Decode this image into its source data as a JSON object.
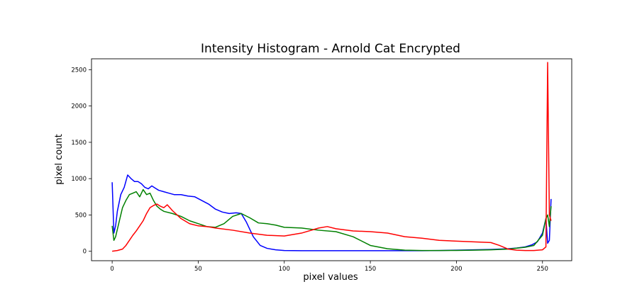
{
  "chart_data": {
    "type": "line",
    "title": "Intensity Histogram - Arnold Cat Encrypted",
    "xlabel": "pixel values",
    "ylabel": "pixel count",
    "xlim": [
      -12,
      267
    ],
    "ylim": [
      -130,
      2650
    ],
    "xticks": [
      0,
      50,
      100,
      150,
      200,
      250
    ],
    "yticks": [
      0,
      500,
      1000,
      1500,
      2000,
      2500
    ],
    "xtick_labels": [
      "0",
      "50",
      "100",
      "150",
      "200",
      "250"
    ],
    "ytick_labels": [
      "0",
      "500",
      "1000",
      "1500",
      "2000",
      "2500"
    ],
    "grid": false,
    "legend": "none",
    "series": [
      {
        "color": "#0000ff",
        "x": [
          0,
          1,
          2,
          3,
          5,
          7,
          9,
          11,
          13,
          15,
          17,
          19,
          21,
          23,
          25,
          27,
          30,
          33,
          36,
          40,
          44,
          48,
          52,
          56,
          60,
          64,
          68,
          72,
          75,
          78,
          82,
          86,
          90,
          95,
          100,
          110,
          120,
          130,
          140,
          150,
          160,
          170,
          180,
          190,
          200,
          210,
          220,
          230,
          235,
          240,
          244,
          247,
          250,
          252,
          253,
          254,
          255
        ],
        "y": [
          950,
          250,
          350,
          550,
          780,
          880,
          1050,
          1000,
          960,
          960,
          930,
          880,
          860,
          900,
          870,
          840,
          820,
          800,
          780,
          780,
          760,
          750,
          700,
          650,
          580,
          540,
          520,
          530,
          520,
          400,
          200,
          80,
          40,
          20,
          10,
          8,
          8,
          8,
          8,
          8,
          8,
          8,
          8,
          10,
          15,
          20,
          25,
          35,
          45,
          60,
          90,
          130,
          250,
          450,
          110,
          150,
          720
        ]
      },
      {
        "color": "#008000",
        "x": [
          0,
          1,
          2,
          4,
          6,
          8,
          10,
          12,
          14,
          16,
          18,
          20,
          22,
          24,
          26,
          28,
          30,
          35,
          40,
          45,
          50,
          55,
          60,
          65,
          70,
          75,
          80,
          85,
          90,
          95,
          100,
          110,
          120,
          130,
          140,
          150,
          160,
          170,
          180,
          190,
          200,
          210,
          220,
          230,
          240,
          245,
          250,
          252,
          253,
          254,
          255
        ],
        "y": [
          350,
          150,
          200,
          400,
          600,
          700,
          780,
          800,
          820,
          750,
          850,
          780,
          800,
          700,
          620,
          580,
          550,
          520,
          480,
          420,
          380,
          340,
          330,
          380,
          480,
          520,
          460,
          390,
          380,
          360,
          330,
          320,
          290,
          270,
          200,
          80,
          35,
          15,
          10,
          10,
          12,
          15,
          20,
          30,
          55,
          80,
          220,
          450,
          500,
          340,
          620
        ]
      },
      {
        "color": "#ff0000",
        "x": [
          0,
          3,
          6,
          8,
          10,
          12,
          14,
          16,
          18,
          20,
          22,
          24,
          26,
          28,
          30,
          32,
          35,
          40,
          45,
          50,
          55,
          60,
          70,
          80,
          90,
          100,
          110,
          120,
          125,
          130,
          140,
          150,
          160,
          170,
          180,
          190,
          200,
          210,
          220,
          225,
          230,
          235,
          240,
          245,
          250,
          252,
          253,
          254,
          255
        ],
        "y": [
          0,
          10,
          30,
          80,
          150,
          220,
          280,
          350,
          420,
          520,
          600,
          630,
          650,
          620,
          600,
          640,
          560,
          450,
          380,
          350,
          340,
          320,
          290,
          250,
          220,
          210,
          250,
          320,
          340,
          310,
          280,
          270,
          250,
          200,
          180,
          150,
          140,
          130,
          120,
          80,
          30,
          15,
          10,
          10,
          20,
          60,
          2600,
          500,
          420
        ]
      }
    ]
  }
}
